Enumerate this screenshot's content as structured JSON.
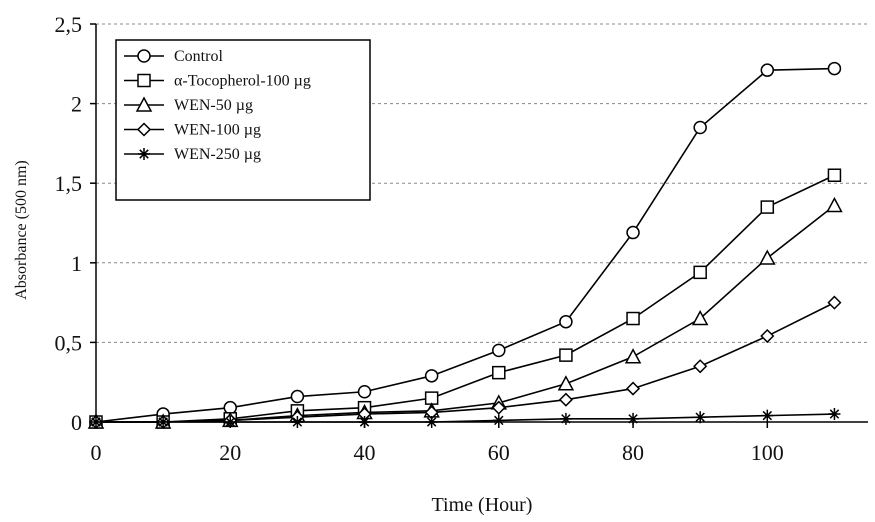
{
  "chart_data": {
    "type": "line",
    "title": "",
    "xlabel": "Time (Hour)",
    "ylabel": "Absorbance (500 nm)",
    "xlim": [
      0,
      115
    ],
    "ylim": [
      0,
      2.5
    ],
    "x_ticks": [
      0,
      20,
      40,
      60,
      80,
      100
    ],
    "x_tick_labels": [
      "0",
      "20",
      "40",
      "60",
      "80",
      "100"
    ],
    "y_ticks": [
      0,
      0.5,
      1,
      1.5,
      2,
      2.5
    ],
    "y_tick_labels": [
      "0",
      "0,5",
      "1",
      "1,5",
      "2",
      "2,5"
    ],
    "grid": "horizontal dashed",
    "legend_position": "top-left",
    "colors": {
      "line": "#000000",
      "grid": "#888888",
      "background": "#ffffff"
    },
    "x": [
      0,
      10,
      20,
      30,
      40,
      50,
      60,
      70,
      80,
      90,
      100,
      110
    ],
    "series": [
      {
        "name": "Control",
        "marker": "circle",
        "values": [
          0,
          0.05,
          0.09,
          0.16,
          0.19,
          0.29,
          0.45,
          0.63,
          1.19,
          1.85,
          2.21,
          2.22
        ]
      },
      {
        "name": "α-Tocopherol-100 µg",
        "marker": "square",
        "values": [
          0,
          0,
          0.02,
          0.07,
          0.09,
          0.15,
          0.31,
          0.42,
          0.65,
          0.94,
          1.35,
          1.55
        ]
      },
      {
        "name": "WEN-50 µg",
        "marker": "triangle",
        "values": [
          0,
          0,
          0.01,
          0.04,
          0.06,
          0.07,
          0.12,
          0.24,
          0.41,
          0.65,
          1.03,
          1.36
        ]
      },
      {
        "name": "WEN-100 µg",
        "marker": "diamond",
        "values": [
          0,
          0,
          0.01,
          0.03,
          0.05,
          0.06,
          0.09,
          0.14,
          0.21,
          0.35,
          0.54,
          0.75
        ]
      },
      {
        "name": "WEN-250 µg",
        "marker": "asterisk",
        "values": [
          0,
          0,
          0,
          0,
          0,
          0,
          0.01,
          0.02,
          0.02,
          0.03,
          0.04,
          0.05
        ]
      }
    ]
  }
}
